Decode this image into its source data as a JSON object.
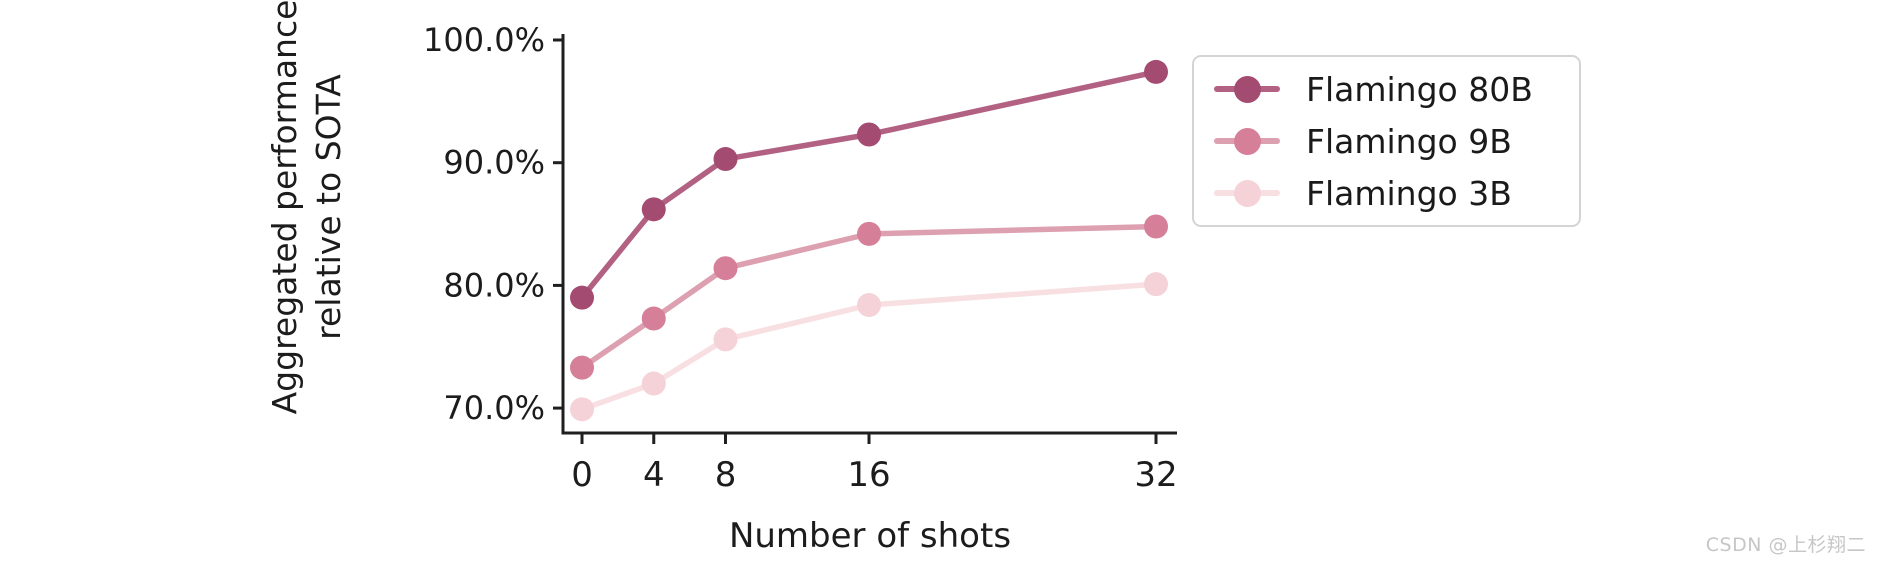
{
  "chart_data": {
    "type": "line",
    "xlabel": "Number of shots",
    "ylabel_lines": [
      "Aggregated performance",
      "relative to SOTA"
    ],
    "x": [
      0,
      4,
      8,
      16,
      32
    ],
    "x_tick_labels": [
      "0",
      "4",
      "8",
      "16",
      "32"
    ],
    "y_ticks": [
      100.0,
      90.0,
      80.0,
      70.0
    ],
    "y_tick_labels": [
      "100.0%",
      "90.0%",
      "80.0%",
      "70.0%"
    ],
    "xlim": [
      -1.06,
      33.17
    ],
    "ylim": [
      67.97,
      100.49
    ],
    "grid": false,
    "legend_position": "right of plot, top",
    "axis_color": "#1f1f1f",
    "series": [
      {
        "name": "Flamingo 80B",
        "values": [
          79.0,
          86.2,
          90.3,
          92.3,
          97.4
        ],
        "line_color": "#b26183",
        "marker_color": "#a34b71"
      },
      {
        "name": "Flamingo 9B",
        "values": [
          73.3,
          77.3,
          81.4,
          84.2,
          84.8
        ],
        "line_color": "#dda0b1",
        "marker_color": "#d57f98"
      },
      {
        "name": "Flamingo 3B",
        "values": [
          69.9,
          72.0,
          75.6,
          78.4,
          80.1
        ],
        "line_color": "#f7dfe2",
        "marker_color": "#f5d2d7"
      }
    ]
  },
  "watermark": {
    "text": "CSDN @上杉翔二"
  }
}
